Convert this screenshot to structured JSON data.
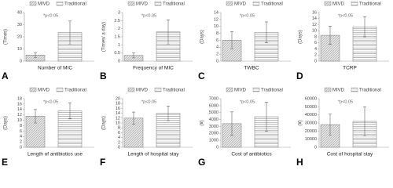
{
  "chart_data": [
    {
      "type": "bar",
      "panel": "A",
      "xlabel": "Number of MIC",
      "ylabel": "(Times)",
      "annotation": "*p<0.05",
      "ylim": [
        0,
        40
      ],
      "yticks": [
        0,
        10,
        20,
        30,
        40
      ],
      "series": [
        {
          "name": "MIVD",
          "values": [
            5
          ],
          "errors": [
            2
          ]
        },
        {
          "name": "Traditional",
          "values": [
            23.5
          ],
          "errors": [
            9.5
          ]
        }
      ]
    },
    {
      "type": "bar",
      "panel": "B",
      "xlabel": "Frequency of MIC",
      "ylabel": "(Times/ a day)",
      "annotation": "*p<0.05",
      "ylim": [
        0,
        3
      ],
      "yticks": [
        0,
        0.5,
        1,
        1.5,
        2,
        2.5,
        3
      ],
      "series": [
        {
          "name": "MIVD",
          "values": [
            0.35
          ],
          "errors": [
            0.15
          ]
        },
        {
          "name": "Traditional",
          "values": [
            1.8
          ],
          "errors": [
            0.75
          ]
        }
      ]
    },
    {
      "type": "bar",
      "panel": "C",
      "xlabel": "TWBC",
      "ylabel": "(Days)",
      "annotation": "*p<0.05",
      "ylim": [
        0,
        14
      ],
      "yticks": [
        0,
        2,
        4,
        6,
        8,
        10,
        12,
        14
      ],
      "series": [
        {
          "name": "MIVD",
          "values": [
            6
          ],
          "errors": [
            2.5
          ]
        },
        {
          "name": "Traditional",
          "values": [
            8.3
          ],
          "errors": [
            3
          ]
        }
      ]
    },
    {
      "type": "bar",
      "panel": "D",
      "xlabel": "TCRP",
      "ylabel": "(Days)",
      "annotation": "*p<0.05",
      "ylim": [
        0,
        16
      ],
      "yticks": [
        0,
        2,
        4,
        6,
        8,
        10,
        12,
        14,
        16
      ],
      "series": [
        {
          "name": "MIVD",
          "values": [
            8.5
          ],
          "errors": [
            3
          ]
        },
        {
          "name": "Traditional",
          "values": [
            11.3
          ],
          "errors": [
            3.3
          ]
        }
      ]
    },
    {
      "type": "bar",
      "panel": "E",
      "xlabel": "Length of antibiotics use",
      "ylabel": "(Days)",
      "annotation": "*p<0.05",
      "ylim": [
        0,
        18
      ],
      "yticks": [
        0,
        2,
        4,
        6,
        8,
        10,
        12,
        14,
        16,
        18
      ],
      "series": [
        {
          "name": "MIVD",
          "values": [
            11.5
          ],
          "errors": [
            2.5
          ]
        },
        {
          "name": "Traditional",
          "values": [
            13.5
          ],
          "errors": [
            3
          ]
        }
      ]
    },
    {
      "type": "bar",
      "panel": "F",
      "xlabel": "Length of hospital stay",
      "ylabel": "(Days)",
      "annotation": "*p<0.05",
      "ylim": [
        0,
        20
      ],
      "yticks": [
        0,
        2,
        4,
        6,
        8,
        10,
        12,
        14,
        16,
        18,
        20
      ],
      "series": [
        {
          "name": "MIVD",
          "values": [
            12
          ],
          "errors": [
            2.5
          ]
        },
        {
          "name": "Traditional",
          "values": [
            14
          ],
          "errors": [
            3
          ]
        }
      ]
    },
    {
      "type": "bar",
      "panel": "G",
      "xlabel": "Cost of antibiotics",
      "ylabel": "(¥)",
      "annotation": "*p<0.05",
      "ylim": [
        0,
        7000
      ],
      "yticks": [
        0,
        1000,
        2000,
        3000,
        4000,
        5000,
        6000,
        7000
      ],
      "series": [
        {
          "name": "MIVD",
          "values": [
            3400
          ],
          "errors": [
            1700
          ]
        },
        {
          "name": "Traditional",
          "values": [
            4400
          ],
          "errors": [
            2100
          ]
        }
      ]
    },
    {
      "type": "bar",
      "panel": "H",
      "xlabel": "Cost of hospital stay",
      "ylabel": "(¥)",
      "annotation": "*p<0.05",
      "ylim": [
        0,
        60000
      ],
      "yticks": [
        0,
        10000,
        20000,
        30000,
        40000,
        50000,
        60000
      ],
      "series": [
        {
          "name": "MIVD",
          "values": [
            28000
          ],
          "errors": [
            13000
          ]
        },
        {
          "name": "Traditional",
          "values": [
            32000
          ],
          "errors": [
            18000
          ]
        }
      ]
    }
  ]
}
